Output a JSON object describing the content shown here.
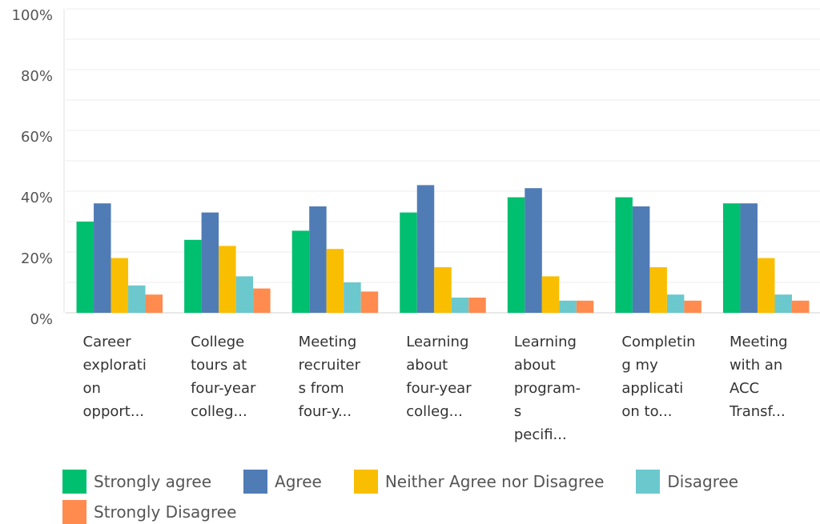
{
  "chart_data": {
    "type": "bar",
    "categories": [
      "Career\nexplorati\non\nopport...",
      "College\ntours at\nfour-year\ncolleg...",
      "Meeting\nrecruiter\ns from\nfour-y...",
      "Learning\nabout\nfour-year\ncolleg...",
      "Learning\nabout\nprogram-\ns\npecifi...",
      "Completin\ng my\napplicati\non to...",
      "Meeting\nwith an\nACC\nTransf..."
    ],
    "series": [
      {
        "name": "Strongly agree",
        "color": "#00bf6f",
        "values": [
          30,
          24,
          27,
          33,
          38,
          38,
          36
        ]
      },
      {
        "name": "Agree",
        "color": "#507cb6",
        "values": [
          36,
          33,
          35,
          42,
          41,
          35,
          36
        ]
      },
      {
        "name": "Neither Agree nor Disagree",
        "color": "#f9be00",
        "values": [
          18,
          22,
          21,
          15,
          12,
          15,
          18
        ]
      },
      {
        "name": "Disagree",
        "color": "#6bc8cd",
        "values": [
          9,
          12,
          10,
          5,
          4,
          6,
          6
        ]
      },
      {
        "name": "Strongly Disagree",
        "color": "#ff8b4f",
        "values": [
          6,
          8,
          7,
          5,
          4,
          4,
          4
        ]
      }
    ],
    "ylim": [
      0,
      100
    ],
    "yticks": [
      {
        "value": 0,
        "label": "0%"
      },
      {
        "value": 20,
        "label": "20%"
      },
      {
        "value": 40,
        "label": "40%"
      },
      {
        "value": 60,
        "label": "60%"
      },
      {
        "value": 80,
        "label": "80%"
      },
      {
        "value": 100,
        "label": "100%"
      }
    ],
    "minor_yticks": [
      10,
      30,
      50,
      70,
      90
    ],
    "grid": true,
    "legend": "bottom"
  }
}
